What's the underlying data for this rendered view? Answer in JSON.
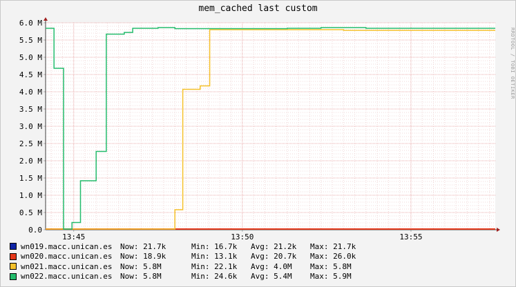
{
  "watermark": "RRDTOOL / TOBI OETIKER",
  "chart_data": {
    "type": "line",
    "title": "mem_cached last custom",
    "ylim": [
      0,
      6.0
    ],
    "y_unit": "M",
    "y_ticks": [
      "0.0",
      "0.5 M",
      "1.0 M",
      "1.5 M",
      "2.0 M",
      "2.5 M",
      "3.0 M",
      "3.5 M",
      "4.0 M",
      "4.5 M",
      "5.0 M",
      "5.5 M",
      "6.0 M"
    ],
    "x_range": [
      "13:44:10",
      "13:57:30"
    ],
    "x_ticks": [
      "13:45",
      "13:50",
      "13:55"
    ],
    "grid": true,
    "series": [
      {
        "name": "wn019.macc.unican.es",
        "color": "#0f24a6",
        "now": "21.7k",
        "min": "16.7k",
        "avg": "21.2k",
        "max": "21.7k",
        "points": [
          [
            0,
            0.02
          ],
          [
            800,
            0.02
          ]
        ]
      },
      {
        "name": "wn020.macc.unican.es",
        "color": "#e5381a",
        "now": "18.9k",
        "min": "13.1k",
        "avg": "20.7k",
        "max": "26.0k",
        "points": [
          [
            0,
            0.02
          ],
          [
            800,
            0.02
          ]
        ]
      },
      {
        "name": "wn021.macc.unican.es",
        "color": "#f5c12b",
        "now": "5.8M",
        "min": "22.1k",
        "avg": "4.0M",
        "max": "5.8M",
        "points": [
          [
            0,
            0.02
          ],
          [
            230,
            0.02
          ],
          [
            230,
            0.58
          ],
          [
            244,
            0.58
          ],
          [
            244,
            4.07
          ],
          [
            275,
            4.07
          ],
          [
            275,
            4.17
          ],
          [
            292,
            4.17
          ],
          [
            292,
            5.8
          ],
          [
            530,
            5.8
          ],
          [
            530,
            5.78
          ],
          [
            800,
            5.78
          ]
        ]
      },
      {
        "name": "wn022.macc.unican.es",
        "color": "#23bc6c",
        "now": "5.8M",
        "min": "24.6k",
        "avg": "5.4M",
        "max": "5.9M",
        "points": [
          [
            0,
            5.84
          ],
          [
            15,
            5.84
          ],
          [
            15,
            4.68
          ],
          [
            32,
            4.68
          ],
          [
            32,
            0.02
          ],
          [
            47,
            0.02
          ],
          [
            47,
            0.21
          ],
          [
            62,
            0.21
          ],
          [
            62,
            1.42
          ],
          [
            90,
            1.42
          ],
          [
            90,
            2.27
          ],
          [
            108,
            2.27
          ],
          [
            108,
            5.67
          ],
          [
            140,
            5.67
          ],
          [
            140,
            5.72
          ],
          [
            155,
            5.72
          ],
          [
            155,
            5.84
          ],
          [
            200,
            5.84
          ],
          [
            200,
            5.86
          ],
          [
            230,
            5.86
          ],
          [
            230,
            5.83
          ],
          [
            430,
            5.83
          ],
          [
            430,
            5.84
          ],
          [
            490,
            5.84
          ],
          [
            490,
            5.86
          ],
          [
            570,
            5.86
          ],
          [
            570,
            5.84
          ],
          [
            800,
            5.84
          ]
        ]
      }
    ]
  }
}
